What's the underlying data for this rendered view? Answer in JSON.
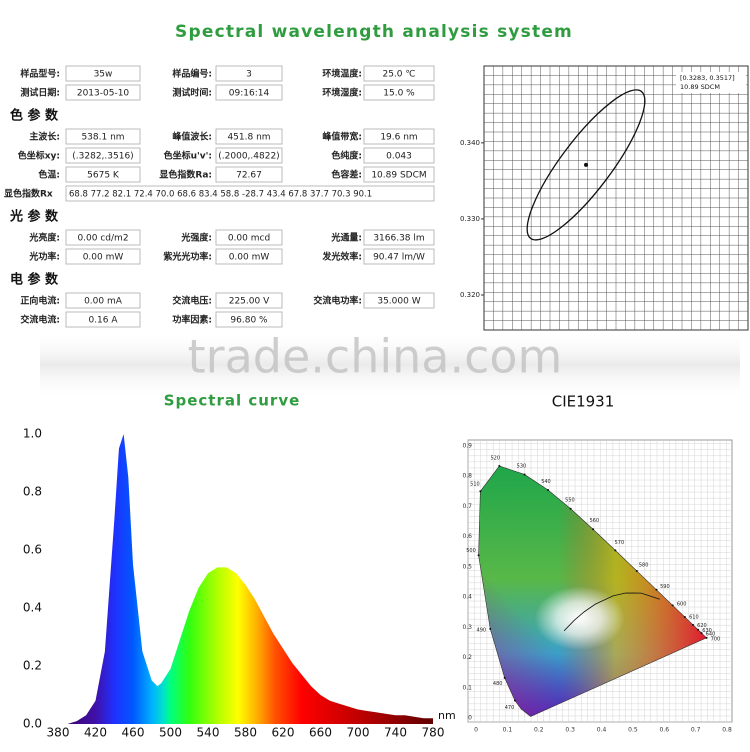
{
  "header": {
    "title": "Spectral wavelength analysis system",
    "watermark": "trade.china.com"
  },
  "table": {
    "rows": [
      [
        {
          "label": "样品型号:",
          "value": "35w"
        },
        {
          "label": "样品编号:",
          "value": "3"
        },
        {
          "label": "环境温度:",
          "value": "25.0 ℃"
        }
      ],
      [
        {
          "label": "测试日期:",
          "value": "2013-05-10"
        },
        {
          "label": "测试时间:",
          "value": "09:16:14"
        },
        {
          "label": "环境湿度:",
          "value": "15.0 %"
        }
      ]
    ],
    "sections": [
      {
        "title": "色 参 数",
        "rows": [
          [
            {
              "label": "主波长:",
              "value": "538.1 nm"
            },
            {
              "label": "峰值波长:",
              "value": "451.8 nm"
            },
            {
              "label": "峰值带宽:",
              "value": "19.6 nm"
            }
          ],
          [
            {
              "label": "色坐标xy:",
              "value": "(.3282,.3516)"
            },
            {
              "label": "色坐标u'v':",
              "value": "(.2000,.4822)"
            },
            {
              "label": "色纯度:",
              "value": "0.043"
            }
          ],
          [
            {
              "label": "色温:",
              "value": "5675 K"
            },
            {
              "label": "显色指数Ra:",
              "value": "72.67"
            },
            {
              "label": "色容差:",
              "value": "10.89 SDCM"
            }
          ],
          [
            {
              "label": "显色指数Rx",
              "value": "68.8 77.2 82.1 72.4 70.0 68.6 83.4 58.8 -28.7 43.4 67.8 37.7 70.3 90.1"
            }
          ]
        ]
      },
      {
        "title": "光 参 数",
        "rows": [
          [
            {
              "label": "光亮度:",
              "value": "0.00 cd/m2"
            },
            {
              "label": "光强度:",
              "value": "0.00 mcd"
            },
            {
              "label": "光通量:",
              "value": "3166.38 lm"
            }
          ],
          [
            {
              "label": "光功率:",
              "value": "0.00 mW"
            },
            {
              "label": "紫光光功率:",
              "value": "0.00 mW"
            },
            {
              "label": "发光效率:",
              "value": "90.47 lm/W"
            }
          ]
        ]
      },
      {
        "title": "电 参 数",
        "rows": [
          [
            {
              "label": "正向电流:",
              "value": "0.00 mA"
            },
            {
              "label": "交流电压:",
              "value": "225.00 V"
            },
            {
              "label": "交流电功率:",
              "value": "35.000 W"
            }
          ],
          [
            {
              "label": "交流电流:",
              "value": "0.16 A"
            },
            {
              "label": "功率因素:",
              "value": "96.80 %"
            }
          ]
        ]
      }
    ]
  },
  "chart_data": [
    {
      "type": "scatter",
      "annotations": [
        "[0.3283, 0.3517]",
        "10.89 SDCM"
      ],
      "values": [
        0.3371
      ],
      "ylim": [
        0.3154,
        0.3501
      ],
      "yticks": [
        {
          "value": 0.34,
          "label": "0.340"
        },
        {
          "value": 0.33,
          "label": "0.330"
        },
        {
          "value": 0.32,
          "label": "0.320"
        }
      ]
    },
    {
      "type": "area",
      "title": "Spectral curve",
      "xlabel": "nm",
      "x": [
        380,
        390,
        400,
        410,
        420,
        430,
        440,
        445,
        450,
        455,
        460,
        470,
        480,
        486,
        490,
        500,
        510,
        520,
        530,
        540,
        550,
        560,
        570,
        580,
        590,
        600,
        610,
        620,
        630,
        640,
        650,
        660,
        670,
        680,
        690,
        700,
        710,
        720,
        730,
        740,
        750,
        760,
        770,
        780
      ],
      "values": [
        0.0,
        0.0,
        0.01,
        0.03,
        0.08,
        0.25,
        0.7,
        0.95,
        1.0,
        0.85,
        0.55,
        0.25,
        0.15,
        0.13,
        0.14,
        0.19,
        0.29,
        0.39,
        0.47,
        0.52,
        0.54,
        0.54,
        0.52,
        0.48,
        0.43,
        0.37,
        0.31,
        0.26,
        0.21,
        0.17,
        0.13,
        0.1,
        0.08,
        0.07,
        0.06,
        0.05,
        0.045,
        0.04,
        0.035,
        0.03,
        0.03,
        0.025,
        0.02,
        0.02
      ],
      "xlim": [
        380,
        780
      ],
      "ylim": [
        0,
        1
      ],
      "xticks": [
        380,
        420,
        460,
        500,
        540,
        580,
        620,
        660,
        700,
        740,
        780
      ],
      "yticks": [
        {
          "value": 0,
          "label": "0.0"
        },
        0.2,
        0.4,
        0.6,
        0.8,
        {
          "value": 1,
          "label": "1.0"
        }
      ]
    },
    {
      "type": "chromaticity",
      "title": "CIE1931",
      "xlim": [
        0,
        0.8
      ],
      "ylim": [
        0,
        0.9
      ],
      "xticks": [
        0,
        0.1,
        0.2,
        0.3,
        0.4,
        0.5,
        0.6,
        0.7,
        0.8
      ],
      "yticks": [
        0,
        0.1,
        0.2,
        0.3,
        0.4,
        0.5,
        0.6,
        0.7,
        0.8,
        0.9
      ],
      "locus_labels": [
        "470",
        "480",
        "490",
        "500",
        "510",
        "520",
        "530",
        "540",
        "550",
        "560",
        "570",
        "580",
        "590",
        "600",
        "610",
        "620",
        "630",
        "640",
        "700"
      ]
    }
  ]
}
